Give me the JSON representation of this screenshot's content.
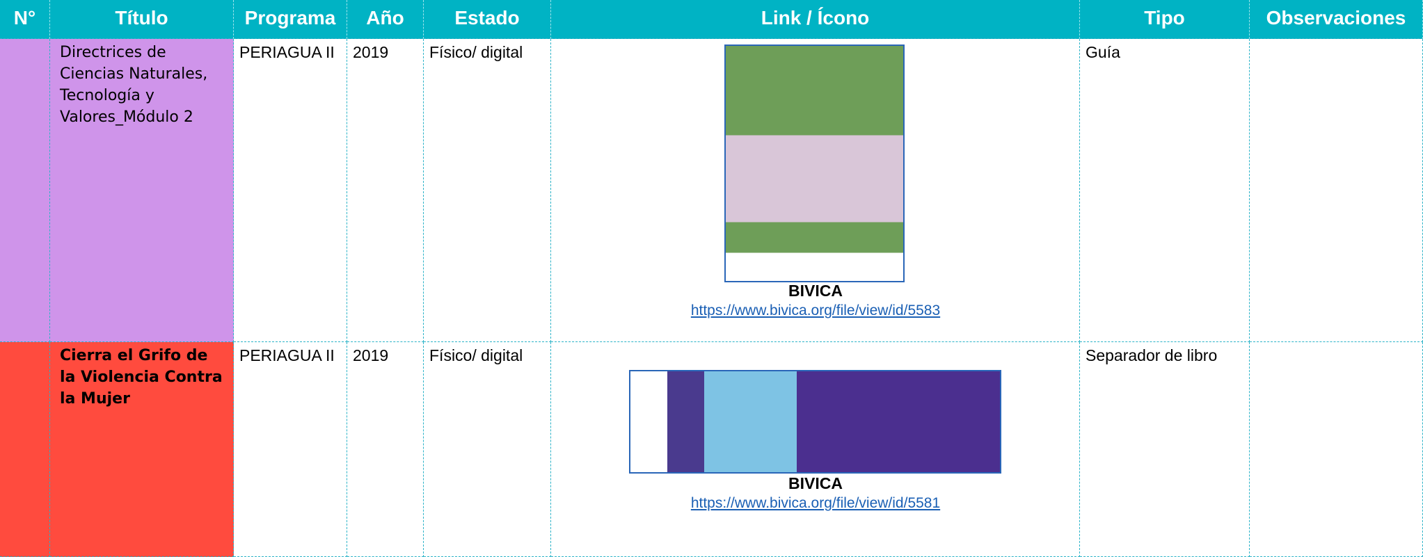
{
  "table": {
    "headers": [
      "N°",
      "Título",
      "Programa",
      "Año",
      "Estado",
      "Link / Ícono",
      "Tipo",
      "Observaciones"
    ],
    "rows": [
      {
        "title": "Directrices de Ciencias Naturales, Tecnología y Valores_Módulo 2",
        "program": "PERIAGUA II",
        "year": "2019",
        "status": "Físico/ digital",
        "source": "BIVICA",
        "link": "https://www.bivica.org/file/view/id/5583",
        "type": "Guía"
      },
      {
        "title": "Cierra el Grifo de la Violencia Contra la Mujer",
        "program": "PERIAGUA II",
        "year": "2019",
        "status": "Físico/ digital",
        "source": "BIVICA",
        "link": "https://www.bivica.org/file/view/id/5581",
        "type": "Separador de libro"
      }
    ]
  }
}
